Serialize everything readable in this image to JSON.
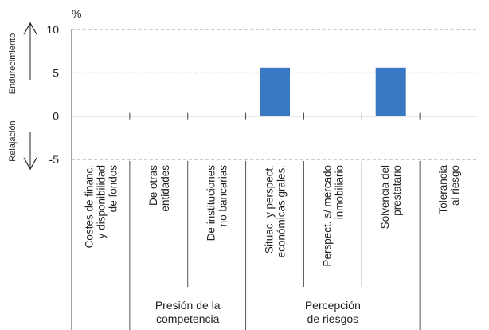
{
  "chart_data": {
    "type": "bar",
    "unit": "%",
    "ylim": [
      -5,
      10
    ],
    "yticks": [
      -5,
      0,
      5,
      10
    ],
    "grid": true,
    "up_label": "Endurecimiento",
    "down_label": "Relajación",
    "categories": [
      [
        "Costes de financ.",
        "y disponibilidad",
        "de fondos"
      ],
      [
        "De otras",
        "entidades"
      ],
      [
        "De instituciones",
        "no bancarias"
      ],
      [
        "Situac. y perspect.",
        "económicas grales."
      ],
      [
        "Perspect. s/ mercado",
        "inmobiliario"
      ],
      [
        "Solvencia del",
        "prestatario"
      ],
      [
        "Tolerancia",
        "al riesgo"
      ]
    ],
    "values": [
      0,
      0,
      0,
      5.6,
      0,
      5.6,
      0
    ],
    "bar_color": "#3a78c3",
    "groups": [
      {
        "lines": [
          "Presión de la",
          "competencia"
        ],
        "start": 1,
        "end": 2
      },
      {
        "lines": [
          "Percepción",
          "de riesgos"
        ],
        "start": 3,
        "end": 5
      }
    ]
  }
}
